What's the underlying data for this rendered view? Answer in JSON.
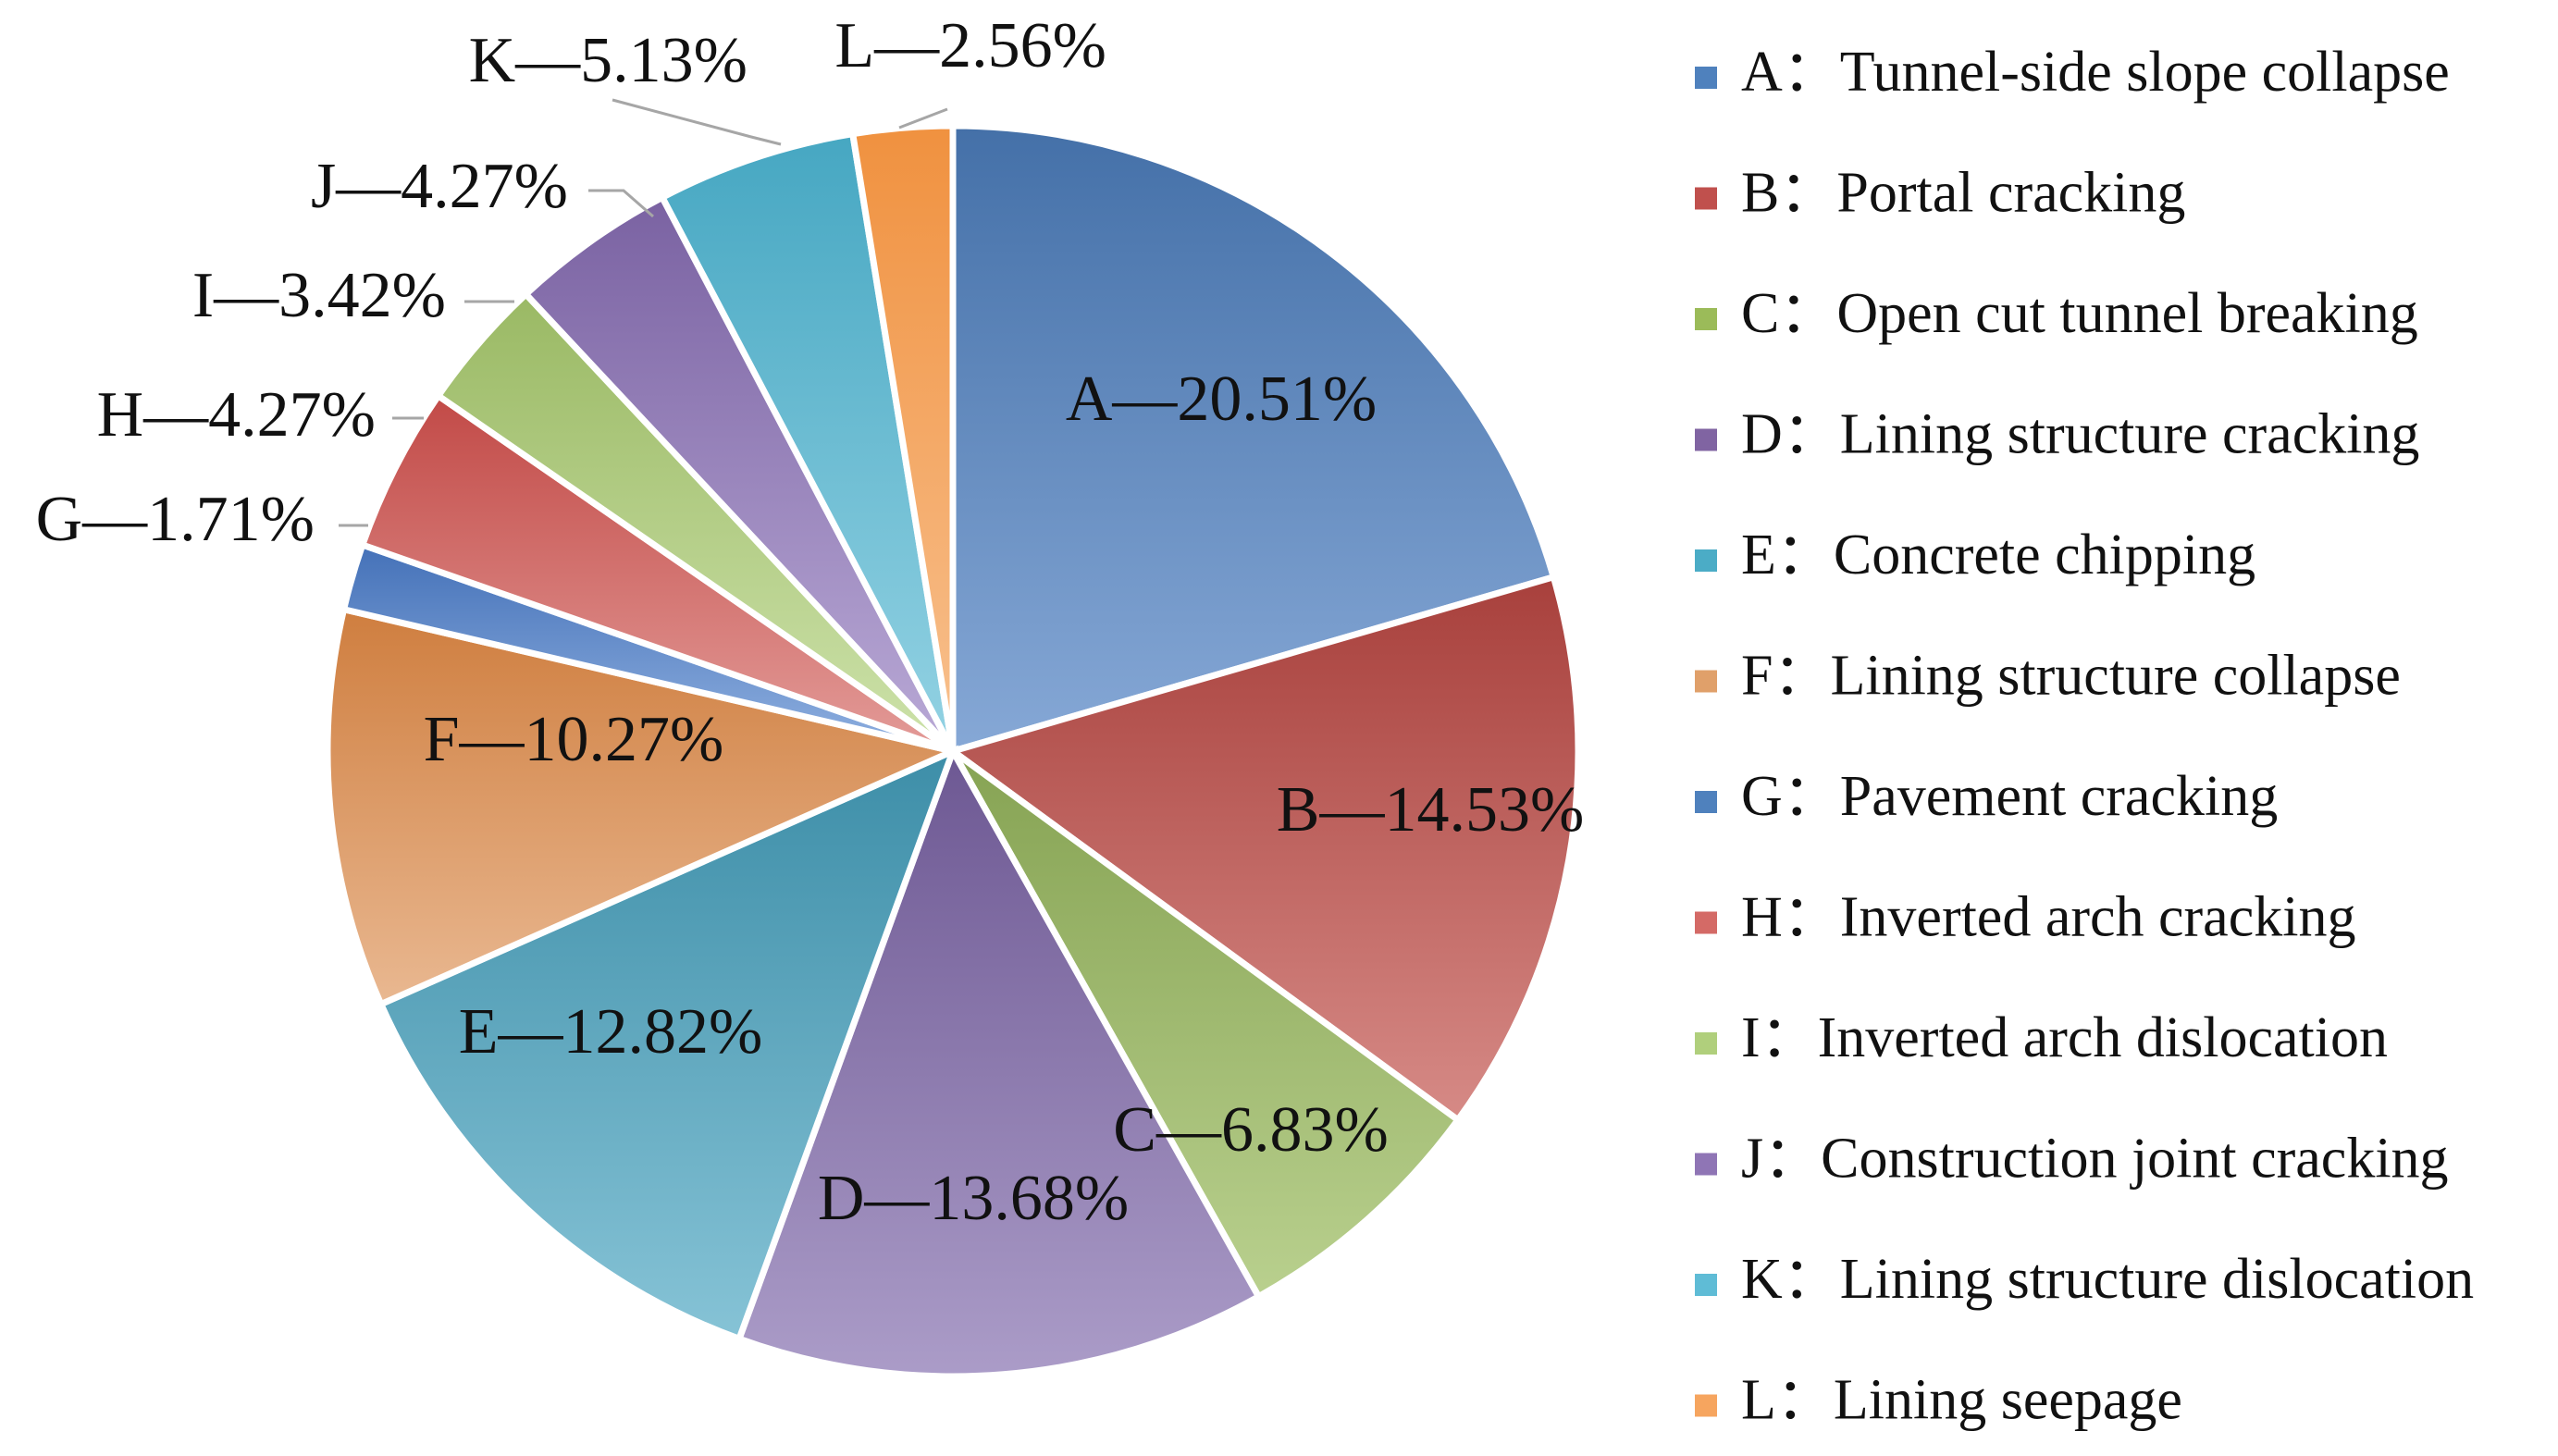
{
  "chart_data": {
    "type": "pie",
    "title": "",
    "unit": "%",
    "slices": [
      {
        "key": "A",
        "name": "Tunnel-side slope collapse",
        "value": 20.51,
        "label": "A—20.51%",
        "color_start": "#4470a8",
        "color_end": "#86a8d6"
      },
      {
        "key": "B",
        "name": "Portal cracking",
        "value": 14.53,
        "label": "B—14.53%",
        "color_start": "#a8403c",
        "color_end": "#d68a86"
      },
      {
        "key": "C",
        "name": "Open cut tunnel breaking",
        "value": 6.83,
        "label": "C—6.83%",
        "color_start": "#86a353",
        "color_end": "#b9d08e"
      },
      {
        "key": "D",
        "name": "Lining structure cracking",
        "value": 13.68,
        "label": "D—13.68%",
        "color_start": "#6d5893",
        "color_end": "#ab9cc8"
      },
      {
        "key": "E",
        "name": "Concrete chipping",
        "value": 12.82,
        "label": "E—12.82%",
        "color_start": "#3d8ea8",
        "color_end": "#86c3d6"
      },
      {
        "key": "F",
        "name": "Lining structure collapse",
        "value": 10.27,
        "label": "F—10.27%",
        "color_start": "#cf7e3f",
        "color_end": "#e9b891"
      },
      {
        "key": "G",
        "name": "Pavement cracking",
        "value": 1.71,
        "label": "G—1.71%",
        "color_start": "#4471b8",
        "color_end": "#8fb0e0"
      },
      {
        "key": "H",
        "name": "Inverted arch cracking",
        "value": 4.27,
        "label": "H—4.27%",
        "color_start": "#c24a47",
        "color_end": "#e39b98"
      },
      {
        "key": "I",
        "name": "Inverted arch dislocation",
        "value": 3.42,
        "label": "I—3.42%",
        "color_start": "#9ab964",
        "color_end": "#cde2aa"
      },
      {
        "key": "J",
        "name": "Construction joint cracking",
        "value": 4.27,
        "label": "J—4.27%",
        "color_start": "#7a62a2",
        "color_end": "#b9a9d6"
      },
      {
        "key": "K",
        "name": "Lining structure dislocation",
        "value": 5.13,
        "label": "K—5.13%",
        "color_start": "#46a7c2",
        "color_end": "#93d2e3"
      },
      {
        "key": "L",
        "name": "Lining seepage",
        "value": 2.56,
        "label": "L—2.56%",
        "color_start": "#f0913f",
        "color_end": "#f8c18f"
      }
    ],
    "legend": {
      "position": "right",
      "separator": "：",
      "swatch_colors": [
        "#4f81bd",
        "#c0504d",
        "#9bbb59",
        "#8064a2",
        "#4bacc6",
        "#e0a06a",
        "#4f81bd",
        "#d46a66",
        "#b0cf7c",
        "#8f75b5",
        "#5fbcd6",
        "#f6a55f"
      ]
    }
  }
}
